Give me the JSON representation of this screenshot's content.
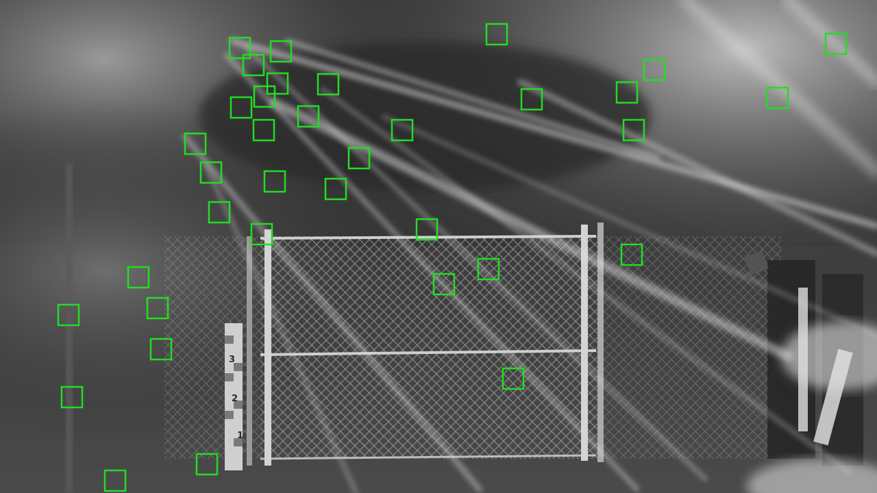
{
  "scene": {
    "description_kind": "night infrared security camera frame",
    "gauge_markings": [
      "3",
      "2",
      "1"
    ]
  },
  "detections": {
    "count": 38,
    "box_color": "#22dd22"
  },
  "colors": {
    "background": "#3a3a3a",
    "fog": "#8a8a8a",
    "streak": "#dcdcdc",
    "fence": "#bdbdbd",
    "detection": "#22dd22"
  }
}
